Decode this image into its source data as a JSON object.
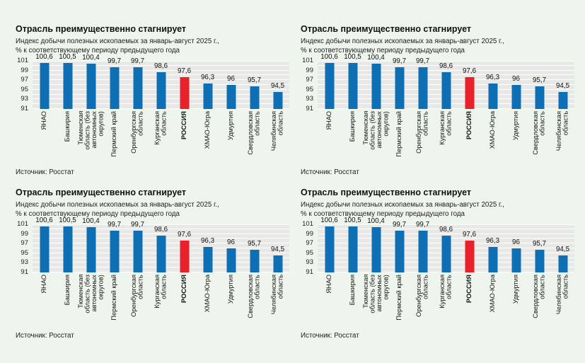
{
  "page": {
    "background": "#edf5ed"
  },
  "panels": [
    "top-left",
    "top-right",
    "bottom-left",
    "bottom-right"
  ],
  "chart": {
    "title": "Отрасль преимущественно стагнирует",
    "subtitle_line1": "Индекс добычи полезных ископаемых за январь-август 2025 г.,",
    "subtitle_line2": "% к соответствующему периоду предыдущего года",
    "source": "Источник: Росстат"
  },
  "chart_data": {
    "type": "bar",
    "title": "Отрасль преимущественно стагнирует",
    "subtitle": "Индекс добычи полезных ископаемых за январь-август 2025 г., % к соответствующему периоду предыдущего года",
    "source": "Источник: Росстат",
    "panel_count": 4,
    "categories": [
      "ЯНАО",
      "Башкирия",
      "Тюменская область (без автономных округов)",
      "Пермский край",
      "Оренбургская область",
      "Курганская область",
      "РОССИЯ",
      "ХМАО-Югра",
      "Удмуртия",
      "Свердловская область",
      "Челябинская область"
    ],
    "categories_display": [
      "ЯНАО",
      "Башкирия",
      "Тюменская\nобласть (без\nавтономных\nокругов)",
      "Пермский край",
      "Оренбургская\nобласть",
      "Курганская\nобласть",
      "РОССИЯ",
      "ХМАО-Югра",
      "Удмуртия",
      "Свердловская\nобласть",
      "Челябинская\nобласть"
    ],
    "values": [
      100.6,
      100.5,
      100.4,
      99.7,
      99.7,
      98.6,
      97.6,
      96.3,
      96,
      95.7,
      94.5
    ],
    "value_labels": [
      "100,6",
      "100,5",
      "100,4",
      "99,7",
      "99,7",
      "98,6",
      "97,6",
      "96,3",
      "96",
      "95,7",
      "94,5"
    ],
    "highlight_index": 6,
    "highlight_category": "РОССИЯ",
    "bar_color": "#0f6fb4",
    "highlight_color": "#e8212a",
    "plot_background": "#e8e8e6",
    "gridline_color": "#ffffff",
    "ylim": [
      91,
      101
    ],
    "yticks": [
      101,
      99,
      97,
      95,
      93,
      91
    ],
    "grid": true,
    "legend_position": "none"
  }
}
